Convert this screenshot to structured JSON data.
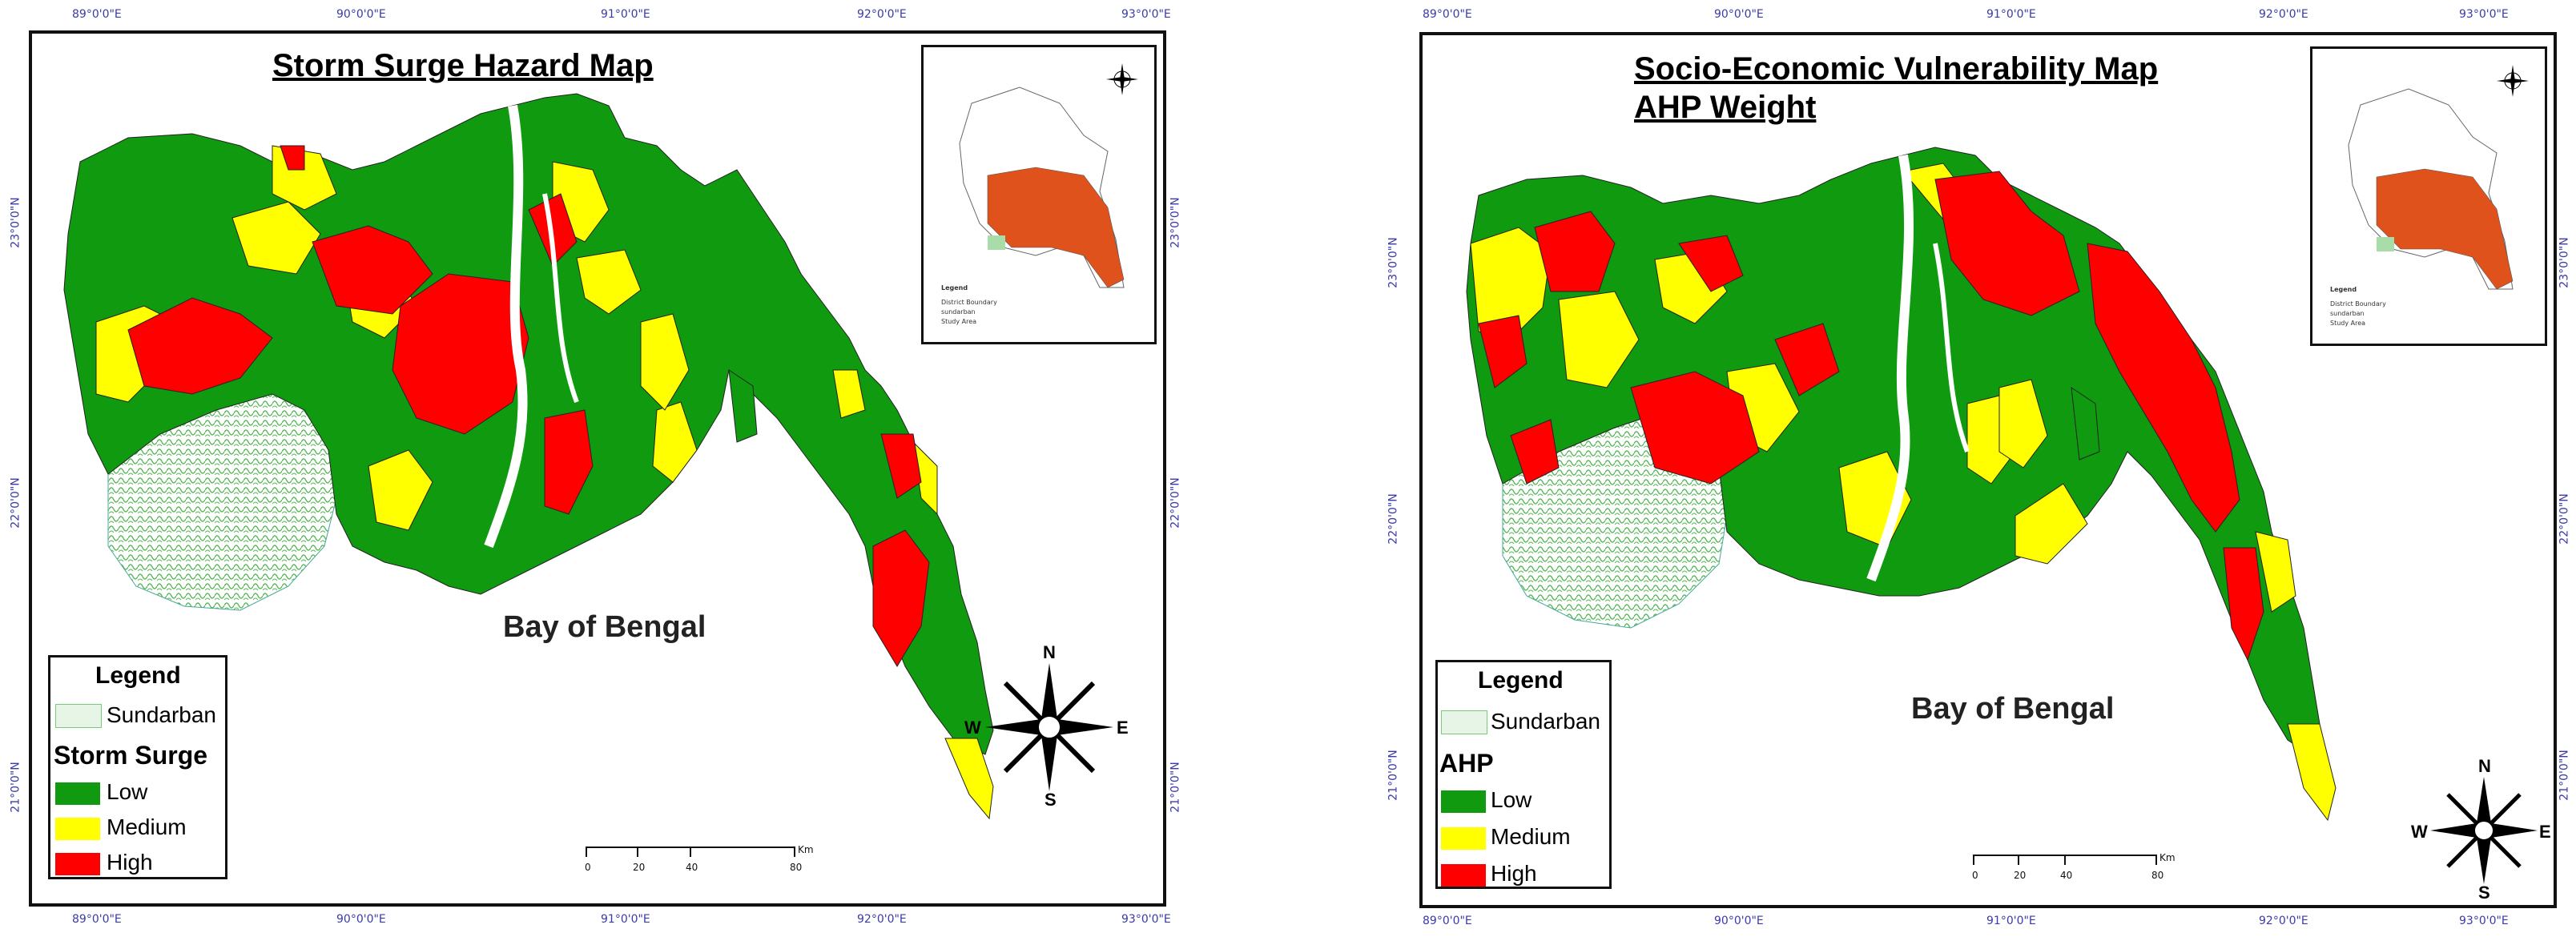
{
  "colors": {
    "low": "#109a10",
    "medium": "#ffff00",
    "high": "#ff0000",
    "sundarban": "#7fc97f",
    "frame": "#111111",
    "coord": "#3a3aa8"
  },
  "left": {
    "title": "Storm Surge Hazard Map",
    "top_coords": [
      "89°0'0\"E",
      "90°0'0\"E",
      "91°0'0\"E",
      "92°0'0\"E",
      "93°0'0\"E"
    ],
    "bottom_coords": [
      "89°0'0\"E",
      "90°0'0\"E",
      "91°0'0\"E",
      "92°0'0\"E",
      "93°0'0\"E"
    ],
    "left_coords": [
      "23°0'0\"N",
      "22°0'0\"N",
      "21°0'0\"N"
    ],
    "right_coords": [
      "23°0'0\"N",
      "22°0'0\"N",
      "21°0'0\"N"
    ],
    "sea_label": "Bay of Bengal",
    "inset": {
      "legend_title": "Legend",
      "items": [
        "District Boundary",
        "sundarban",
        "Study Area"
      ]
    },
    "legend": {
      "title": "Legend",
      "sundarban": "Sundarban",
      "heading": "Storm Surge",
      "low": "Low",
      "medium": "Medium",
      "high": "High"
    },
    "scale": {
      "ticks": [
        "0",
        "20",
        "40",
        "80"
      ],
      "unit": "Km"
    },
    "compass": {
      "n": "N",
      "s": "S",
      "e": "E",
      "w": "W"
    }
  },
  "right": {
    "title_line1": "Socio-Economic Vulnerability Map",
    "title_line2": "AHP Weight",
    "top_coords": [
      "89°0'0\"E",
      "90°0'0\"E",
      "91°0'0\"E",
      "92°0'0\"E",
      "93°0'0\"E"
    ],
    "bottom_coords": [
      "89°0'0\"E",
      "90°0'0\"E",
      "91°0'0\"E",
      "92°0'0\"E",
      "93°0'0\"E"
    ],
    "left_coords": [
      "23°0'0\"N",
      "22°0'0\"N",
      "21°0'0\"N"
    ],
    "right_coords": [
      "23°0'0\"N",
      "22°0'0\"N",
      "21°0'0\"N"
    ],
    "sea_label": "Bay of Bengal",
    "inset": {
      "legend_title": "Legend",
      "items": [
        "District Boundary",
        "sundarban",
        "Study Area"
      ]
    },
    "legend": {
      "title": "Legend",
      "sundarban": "Sundarban",
      "heading": "AHP",
      "low": "Low",
      "medium": "Medium",
      "high": "High"
    },
    "scale": {
      "ticks": [
        "0",
        "20",
        "40",
        "80"
      ],
      "unit": "Km"
    },
    "compass": {
      "n": "N",
      "s": "S",
      "e": "E",
      "w": "W"
    }
  }
}
